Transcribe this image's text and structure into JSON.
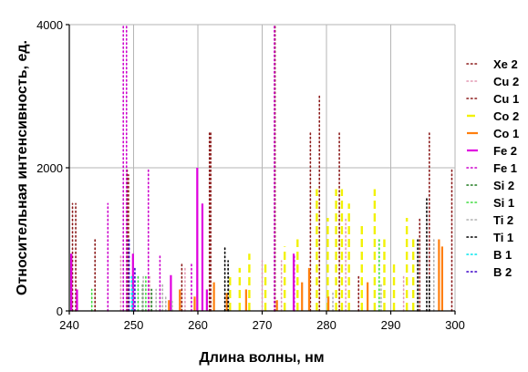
{
  "chart_data": {
    "type": "bar",
    "title": "",
    "xlabel": "Длина волны, нм",
    "ylabel": "Относительная интенсивность, ед.",
    "xlim": [
      240,
      300
    ],
    "ylim": [
      0,
      4000
    ],
    "x_ticks": [
      "240",
      "250",
      "260",
      "270",
      "280",
      "290",
      "300"
    ],
    "y_ticks": [
      "0",
      "2000",
      "4000"
    ],
    "grid": true,
    "legend_position": "right",
    "series": [
      {
        "name": "Xe 2",
        "color": "#8b1a1a",
        "style": "dot",
        "x": [
          240.5,
          244.0,
          249.0,
          262.0,
          272.0,
          278.9,
          285.0,
          296.0,
          299.5
        ],
        "values": [
          1500,
          1000,
          2000,
          2500,
          4000,
          3000,
          500,
          2500,
          2000
        ]
      },
      {
        "name": "Cu 2",
        "color": "#e39ab4",
        "style": "dot",
        "x": [
          248.0,
          252.5,
          258.0,
          270.0,
          273.0,
          283.0,
          292.0
        ],
        "values": [
          800,
          500,
          600,
          700,
          700,
          1300,
          500
        ]
      },
      {
        "name": "Cu 1",
        "color": "#8b1a1a",
        "style": "dot",
        "x": [
          241.0,
          249.2,
          257.5,
          261.8,
          277.5,
          282.0,
          294.5
        ],
        "values": [
          1500,
          1900,
          650,
          2500,
          2500,
          2500,
          1300
        ]
      },
      {
        "name": "Co 2",
        "color": "#f2f205",
        "style": "dash",
        "x": [
          265.0,
          266.5,
          268.0,
          270.5,
          273.5,
          275.5,
          278.5,
          280.2,
          281.5,
          282.4,
          283.5,
          285.5,
          287.5,
          289.0,
          290.5,
          292.5,
          293.5
        ],
        "values": [
          500,
          600,
          800,
          700,
          900,
          1000,
          1700,
          1300,
          1700,
          1700,
          1500,
          1200,
          1700,
          1000,
          700,
          1300,
          1000
        ]
      },
      {
        "name": "Co 1",
        "color": "#ff7f0e",
        "style": "solid",
        "x": [
          255.5,
          257.2,
          259.5,
          262.5,
          264.5,
          267.5,
          272.3,
          276.2,
          277.3,
          280.3,
          286.4,
          297.5,
          298.0
        ],
        "values": [
          150,
          300,
          200,
          400,
          250,
          300,
          150,
          400,
          600,
          200,
          400,
          1000,
          900
        ]
      },
      {
        "name": "Fe 2",
        "color": "#e000e0",
        "style": "solid",
        "x": [
          240.3,
          241.2,
          249.9,
          255.8,
          259.9,
          260.7,
          261.4,
          274.9
        ],
        "values": [
          800,
          300,
          800,
          500,
          2000,
          1500,
          300,
          800
        ]
      },
      {
        "name": "Fe 1",
        "color": "#cc00cc",
        "style": "dot",
        "x": [
          246.0,
          248.4,
          248.9,
          252.3,
          254.1,
          259.0,
          271.9,
          275.0
        ],
        "values": [
          1500,
          4000,
          4000,
          2000,
          800,
          650,
          4000,
          800
        ]
      },
      {
        "name": "Si 2",
        "color": "#1f7a1f",
        "style": "dot",
        "x": [
          251.4,
          252.8
        ],
        "values": [
          400,
          300
        ]
      },
      {
        "name": "Si 1",
        "color": "#3fdc3f",
        "style": "dot",
        "x": [
          243.5,
          250.7,
          251.9,
          288.2
        ],
        "values": [
          300,
          500,
          500,
          1000
        ]
      },
      {
        "name": "Ti 2",
        "color": "#b0b0b0",
        "style": "dot",
        "x": [
          251.5,
          253.5,
          254.5,
          255.0,
          256.0,
          264.8,
          281.0,
          288.5,
          296.7
        ],
        "values": [
          500,
          300,
          400,
          200,
          150,
          500,
          250,
          400,
          1000
        ]
      },
      {
        "name": "Ti 1",
        "color": "#000000",
        "style": "dot",
        "x": [
          264.2,
          264.7,
          294.2,
          295.6,
          296.0
        ],
        "values": [
          900,
          700,
          1000,
          1600,
          500
        ]
      },
      {
        "name": "B 1",
        "color": "#00e5ee",
        "style": "dot",
        "x": [
          249.7,
          249.8
        ],
        "values": [
          500,
          300
        ]
      },
      {
        "name": "B 2",
        "color": "#3a00c8",
        "style": "dot",
        "x": [
          249.3,
          250.2
        ],
        "values": [
          1000,
          600
        ]
      }
    ]
  }
}
